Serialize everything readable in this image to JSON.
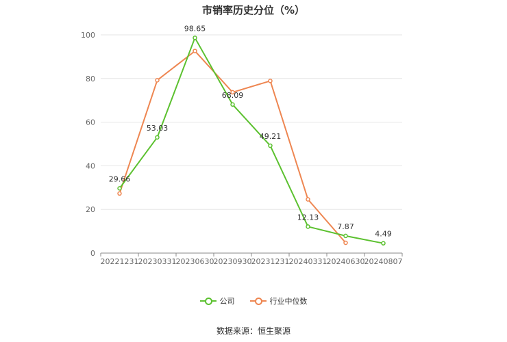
{
  "chart_data": {
    "type": "line",
    "title": "市销率历史分位（%）",
    "categories": [
      "20221231",
      "20230331",
      "20230630",
      "20230930",
      "20231231",
      "20240331",
      "20240630",
      "20240807"
    ],
    "ylim": [
      0,
      100
    ],
    "yticks": [
      "0",
      "20",
      "40",
      "60",
      "80",
      "100"
    ],
    "grid": true,
    "legend_position": "bottom",
    "series": [
      {
        "name": "公司",
        "color": "#5cc130",
        "values": [
          29.66,
          53.03,
          98.65,
          68.09,
          49.21,
          12.13,
          7.87,
          4.49
        ],
        "labels": [
          "29.66",
          "53.03",
          "98.65",
          "68.09",
          "49.21",
          "12.13",
          "7.87",
          "4.49"
        ]
      },
      {
        "name": "行业中位数",
        "color": "#ee8651",
        "values": [
          27.3,
          79.2,
          92.6,
          73.7,
          78.9,
          24.6,
          4.7,
          null
        ]
      }
    ]
  },
  "source_text": "数据来源：恒生聚源"
}
